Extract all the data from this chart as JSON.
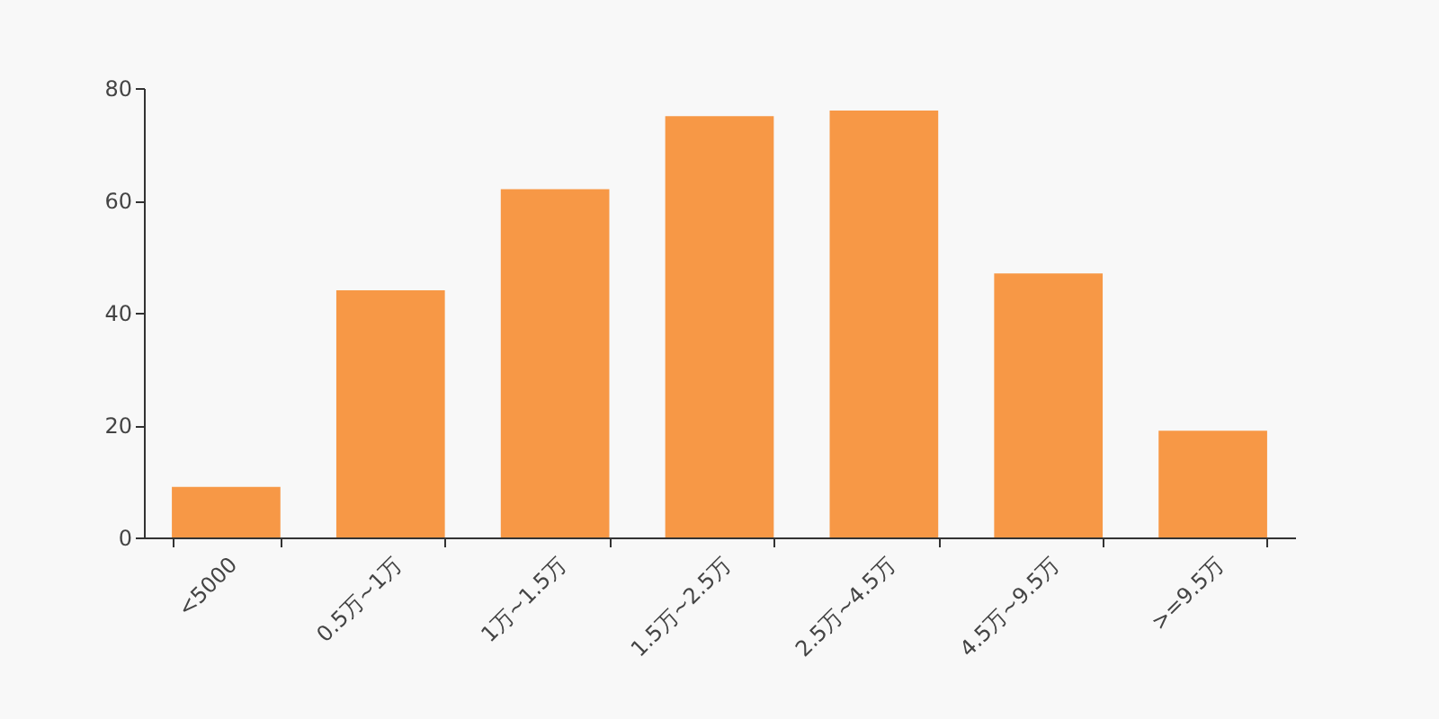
{
  "chart_data": {
    "type": "bar",
    "categories": [
      "<5000",
      "0.5万~1万",
      "1万~1.5万",
      "1.5万~2.5万",
      "2.5万~4.5万",
      "4.5万~9.5万",
      ">=9.5万"
    ],
    "values": [
      9,
      44,
      62,
      75,
      76,
      47,
      19
    ],
    "color": "#f79846",
    "ylim": [
      0,
      80
    ],
    "yticks": [
      0,
      20,
      40,
      60,
      80
    ],
    "grid": false
  }
}
